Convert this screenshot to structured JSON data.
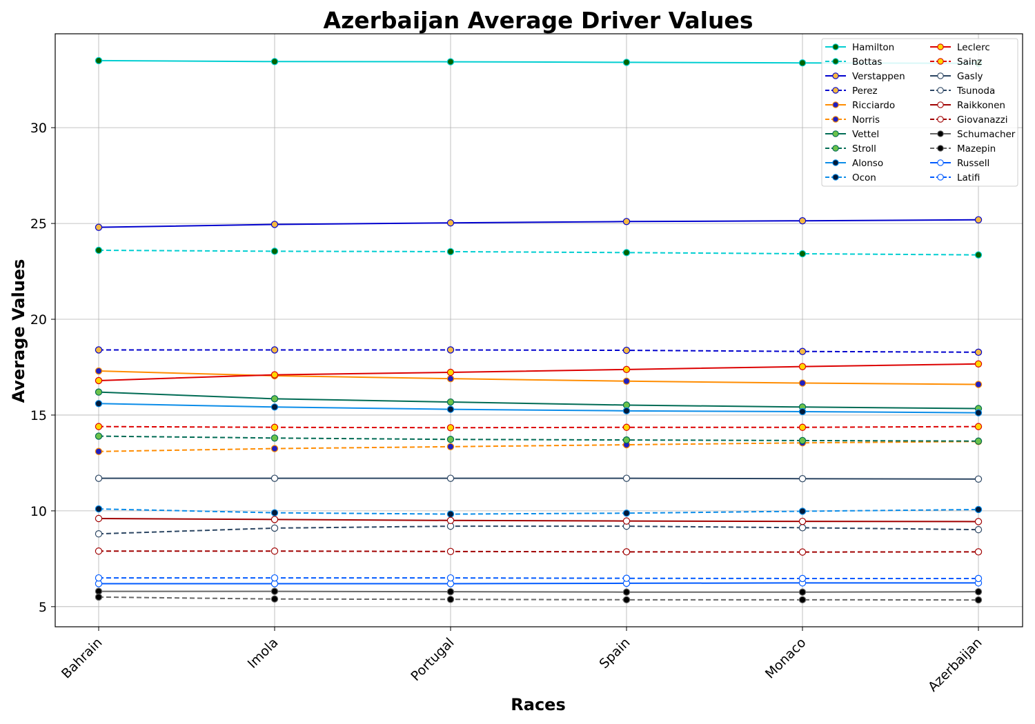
{
  "chart_data": {
    "type": "line",
    "title": "Azerbaijan Average Driver Values",
    "xlabel": "Races",
    "ylabel": "Average Values",
    "categories": [
      "Bahrain",
      "Imola",
      "Portugal",
      "Spain",
      "Monaco",
      "Azerbaijan"
    ],
    "ylim": [
      3.95,
      34.9
    ],
    "yticks": [
      5,
      10,
      15,
      20,
      25,
      30
    ],
    "grid": true,
    "legend_position": "top-right",
    "series": [
      {
        "name": "Hamilton",
        "color": "#00CED1",
        "marker_fill": "#006400",
        "dashed": false,
        "values": [
          33.5,
          33.45,
          33.44,
          33.41,
          33.38,
          33.36
        ]
      },
      {
        "name": "Bottas",
        "color": "#00CED1",
        "marker_fill": "#006400",
        "dashed": true,
        "values": [
          23.6,
          23.55,
          23.53,
          23.48,
          23.42,
          23.36
        ]
      },
      {
        "name": "Verstappen",
        "color": "#0000CD",
        "marker_fill": "#F4B942",
        "dashed": false,
        "values": [
          24.8,
          24.95,
          25.03,
          25.1,
          25.14,
          25.19
        ]
      },
      {
        "name": "Perez",
        "color": "#0000CD",
        "marker_fill": "#F4B942",
        "dashed": true,
        "values": [
          18.4,
          18.4,
          18.4,
          18.38,
          18.32,
          18.28
        ]
      },
      {
        "name": "Ricciardo",
        "color": "#FF8C00",
        "marker_fill": "#2020C0",
        "dashed": false,
        "values": [
          17.3,
          17.05,
          16.9,
          16.77,
          16.67,
          16.6
        ]
      },
      {
        "name": "Norris",
        "color": "#FF8C00",
        "marker_fill": "#2020C0",
        "dashed": true,
        "values": [
          13.1,
          13.25,
          13.35,
          13.45,
          13.55,
          13.62
        ]
      },
      {
        "name": "Vettel",
        "color": "#006B54",
        "marker_fill": "#6CC24A",
        "dashed": false,
        "values": [
          16.2,
          15.85,
          15.68,
          15.52,
          15.42,
          15.34
        ]
      },
      {
        "name": "Stroll",
        "color": "#006B54",
        "marker_fill": "#6CC24A",
        "dashed": true,
        "values": [
          13.9,
          13.8,
          13.73,
          13.7,
          13.67,
          13.64
        ]
      },
      {
        "name": "Alonso",
        "color": "#0A8CE8",
        "marker_fill": "#001A3A",
        "dashed": false,
        "values": [
          15.6,
          15.42,
          15.3,
          15.22,
          15.18,
          15.12
        ]
      },
      {
        "name": "Ocon",
        "color": "#0A8CE8",
        "marker_fill": "#001A3A",
        "dashed": true,
        "values": [
          10.1,
          9.9,
          9.83,
          9.88,
          9.98,
          10.07
        ]
      },
      {
        "name": "Leclerc",
        "color": "#DC0000",
        "marker_fill": "#FFD700",
        "dashed": false,
        "values": [
          16.8,
          17.1,
          17.23,
          17.38,
          17.53,
          17.67
        ]
      },
      {
        "name": "Sainz",
        "color": "#DC0000",
        "marker_fill": "#FFD700",
        "dashed": true,
        "values": [
          14.4,
          14.36,
          14.34,
          14.36,
          14.36,
          14.4
        ]
      },
      {
        "name": "Gasly",
        "color": "#2B4562",
        "marker_fill": "#FFFFFF",
        "dashed": false,
        "values": [
          11.7,
          11.7,
          11.7,
          11.7,
          11.68,
          11.66
        ]
      },
      {
        "name": "Tsunoda",
        "color": "#2B4562",
        "marker_fill": "#FFFFFF",
        "dashed": true,
        "values": [
          8.8,
          9.1,
          9.2,
          9.2,
          9.12,
          9.02
        ]
      },
      {
        "name": "Raikkonen",
        "color": "#A00000",
        "marker_fill": "#FFFFFF",
        "dashed": false,
        "values": [
          9.6,
          9.55,
          9.5,
          9.47,
          9.45,
          9.44
        ]
      },
      {
        "name": "Giovanazzi",
        "color": "#A00000",
        "marker_fill": "#FFFFFF",
        "dashed": true,
        "values": [
          7.9,
          7.9,
          7.88,
          7.86,
          7.85,
          7.86
        ]
      },
      {
        "name": "Schumacher",
        "color": "#666666",
        "marker_fill": "#000000",
        "dashed": false,
        "values": [
          5.8,
          5.8,
          5.78,
          5.76,
          5.76,
          5.78
        ]
      },
      {
        "name": "Mazepin",
        "color": "#666666",
        "marker_fill": "#000000",
        "dashed": true,
        "values": [
          5.5,
          5.4,
          5.38,
          5.36,
          5.36,
          5.35
        ]
      },
      {
        "name": "Russell",
        "color": "#005AFF",
        "marker_fill": "#FFFFFF",
        "dashed": false,
        "values": [
          6.2,
          6.2,
          6.2,
          6.22,
          6.24,
          6.24
        ]
      },
      {
        "name": "Latifi",
        "color": "#005AFF",
        "marker_fill": "#FFFFFF",
        "dashed": true,
        "values": [
          6.5,
          6.5,
          6.5,
          6.48,
          6.47,
          6.47
        ]
      }
    ]
  }
}
